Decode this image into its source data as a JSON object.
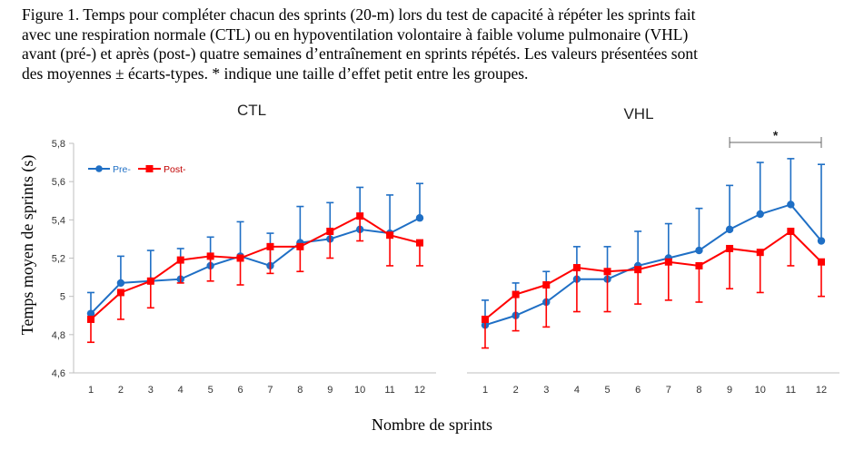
{
  "caption": [
    "Figure 1. Temps pour compléter chacun des sprints (20-m) lors du test de capacité à répéter les sprints fait",
    "avec une respiration normale (CTL) ou en hypoventilation volontaire à faible volume pulmonaire (VHL)",
    "avant (pré-) et après (post-) quatre semaines d’entraînement en sprints répétés. Les valeurs présentées sont",
    "des moyennes ± écarts-types.  * indique une taille d’effet petit entre les groupes."
  ],
  "y_axis_label": "Temps  moyen  de  sprints  (s)",
  "x_axis_label": "Nombre de sprints",
  "colors": {
    "pre": "#1f6fc5",
    "post": "#ff0000",
    "axis": "#bfbfbf"
  },
  "chart_data": [
    {
      "type": "line",
      "title": "CTL",
      "x": [
        1,
        2,
        3,
        4,
        5,
        6,
        7,
        8,
        9,
        10,
        11,
        12
      ],
      "ylim": [
        4.6,
        5.8
      ],
      "yticks": [
        "4,6",
        "4,8",
        "5",
        "5,2",
        "5,4",
        "5,6",
        "5,8"
      ],
      "ytick_values": [
        4.6,
        4.8,
        5.0,
        5.2,
        5.4,
        5.6,
        5.8
      ],
      "legend": "top-left",
      "series": [
        {
          "name": "Pre-",
          "values": [
            4.91,
            5.07,
            5.08,
            5.09,
            5.16,
            5.21,
            5.16,
            5.28,
            5.3,
            5.35,
            5.33,
            5.41
          ],
          "sd_up": [
            0.11,
            0.14,
            0.16,
            0.16,
            0.15,
            0.18,
            0.17,
            0.19,
            0.19,
            0.22,
            0.2,
            0.18
          ]
        },
        {
          "name": "Post-",
          "values": [
            4.88,
            5.02,
            5.08,
            5.19,
            5.21,
            5.2,
            5.26,
            5.26,
            5.34,
            5.42,
            5.32,
            5.28
          ],
          "sd_down": [
            0.12,
            0.14,
            0.14,
            0.12,
            0.13,
            0.14,
            0.14,
            0.13,
            0.14,
            0.13,
            0.16,
            0.12
          ]
        }
      ]
    },
    {
      "type": "line",
      "title": "VHL",
      "x": [
        1,
        2,
        3,
        4,
        5,
        6,
        7,
        8,
        9,
        10,
        11,
        12
      ],
      "ylim": [
        4.6,
        5.8
      ],
      "annotation": {
        "text": "*",
        "from": 9,
        "to": 12
      },
      "series": [
        {
          "name": "Pre-",
          "values": [
            4.85,
            4.9,
            4.97,
            5.09,
            5.09,
            5.16,
            5.2,
            5.24,
            5.35,
            5.43,
            5.48,
            5.29
          ],
          "sd_up": [
            0.13,
            0.17,
            0.16,
            0.17,
            0.17,
            0.18,
            0.18,
            0.22,
            0.23,
            0.27,
            0.24,
            0.4
          ]
        },
        {
          "name": "Post-",
          "values": [
            4.88,
            5.01,
            5.06,
            5.15,
            5.13,
            5.14,
            5.18,
            5.16,
            5.25,
            5.23,
            5.34,
            5.18
          ],
          "sd_down": [
            0.15,
            0.19,
            0.22,
            0.23,
            0.21,
            0.18,
            0.2,
            0.19,
            0.21,
            0.21,
            0.18,
            0.18
          ]
        }
      ]
    }
  ]
}
